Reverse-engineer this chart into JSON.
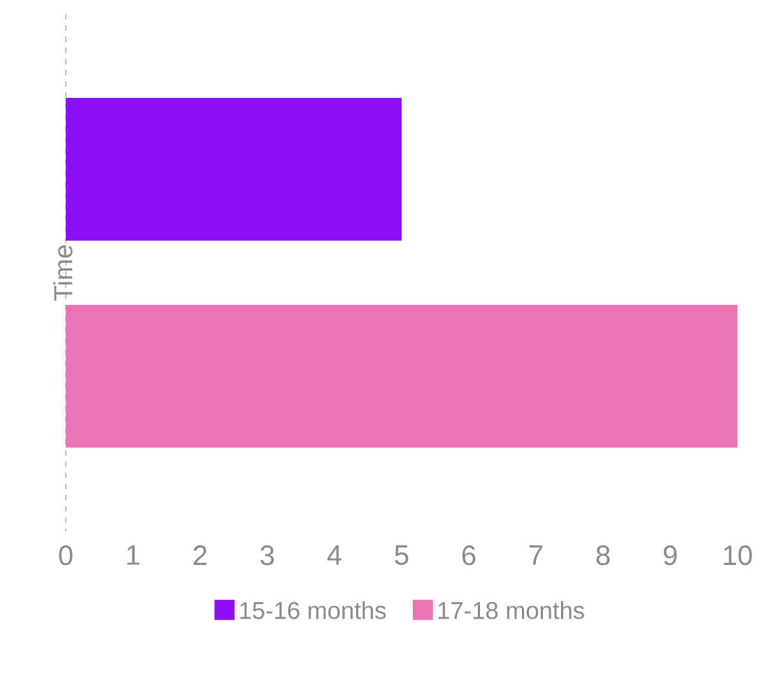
{
  "chart_data": {
    "type": "bar",
    "orientation": "horizontal",
    "ylabel": "Time",
    "categories": [
      null
    ],
    "series": [
      {
        "name": "15-16 months",
        "color": "#8b10f5",
        "values": [
          5
        ]
      },
      {
        "name": "17-18 months",
        "color": "#ec74b4",
        "values": [
          10
        ]
      }
    ],
    "xlim": [
      0,
      10
    ],
    "xticks": [
      0,
      1,
      2,
      3,
      4,
      5,
      6,
      7,
      8,
      9,
      10
    ],
    "grid": false,
    "legend": "bottom"
  }
}
